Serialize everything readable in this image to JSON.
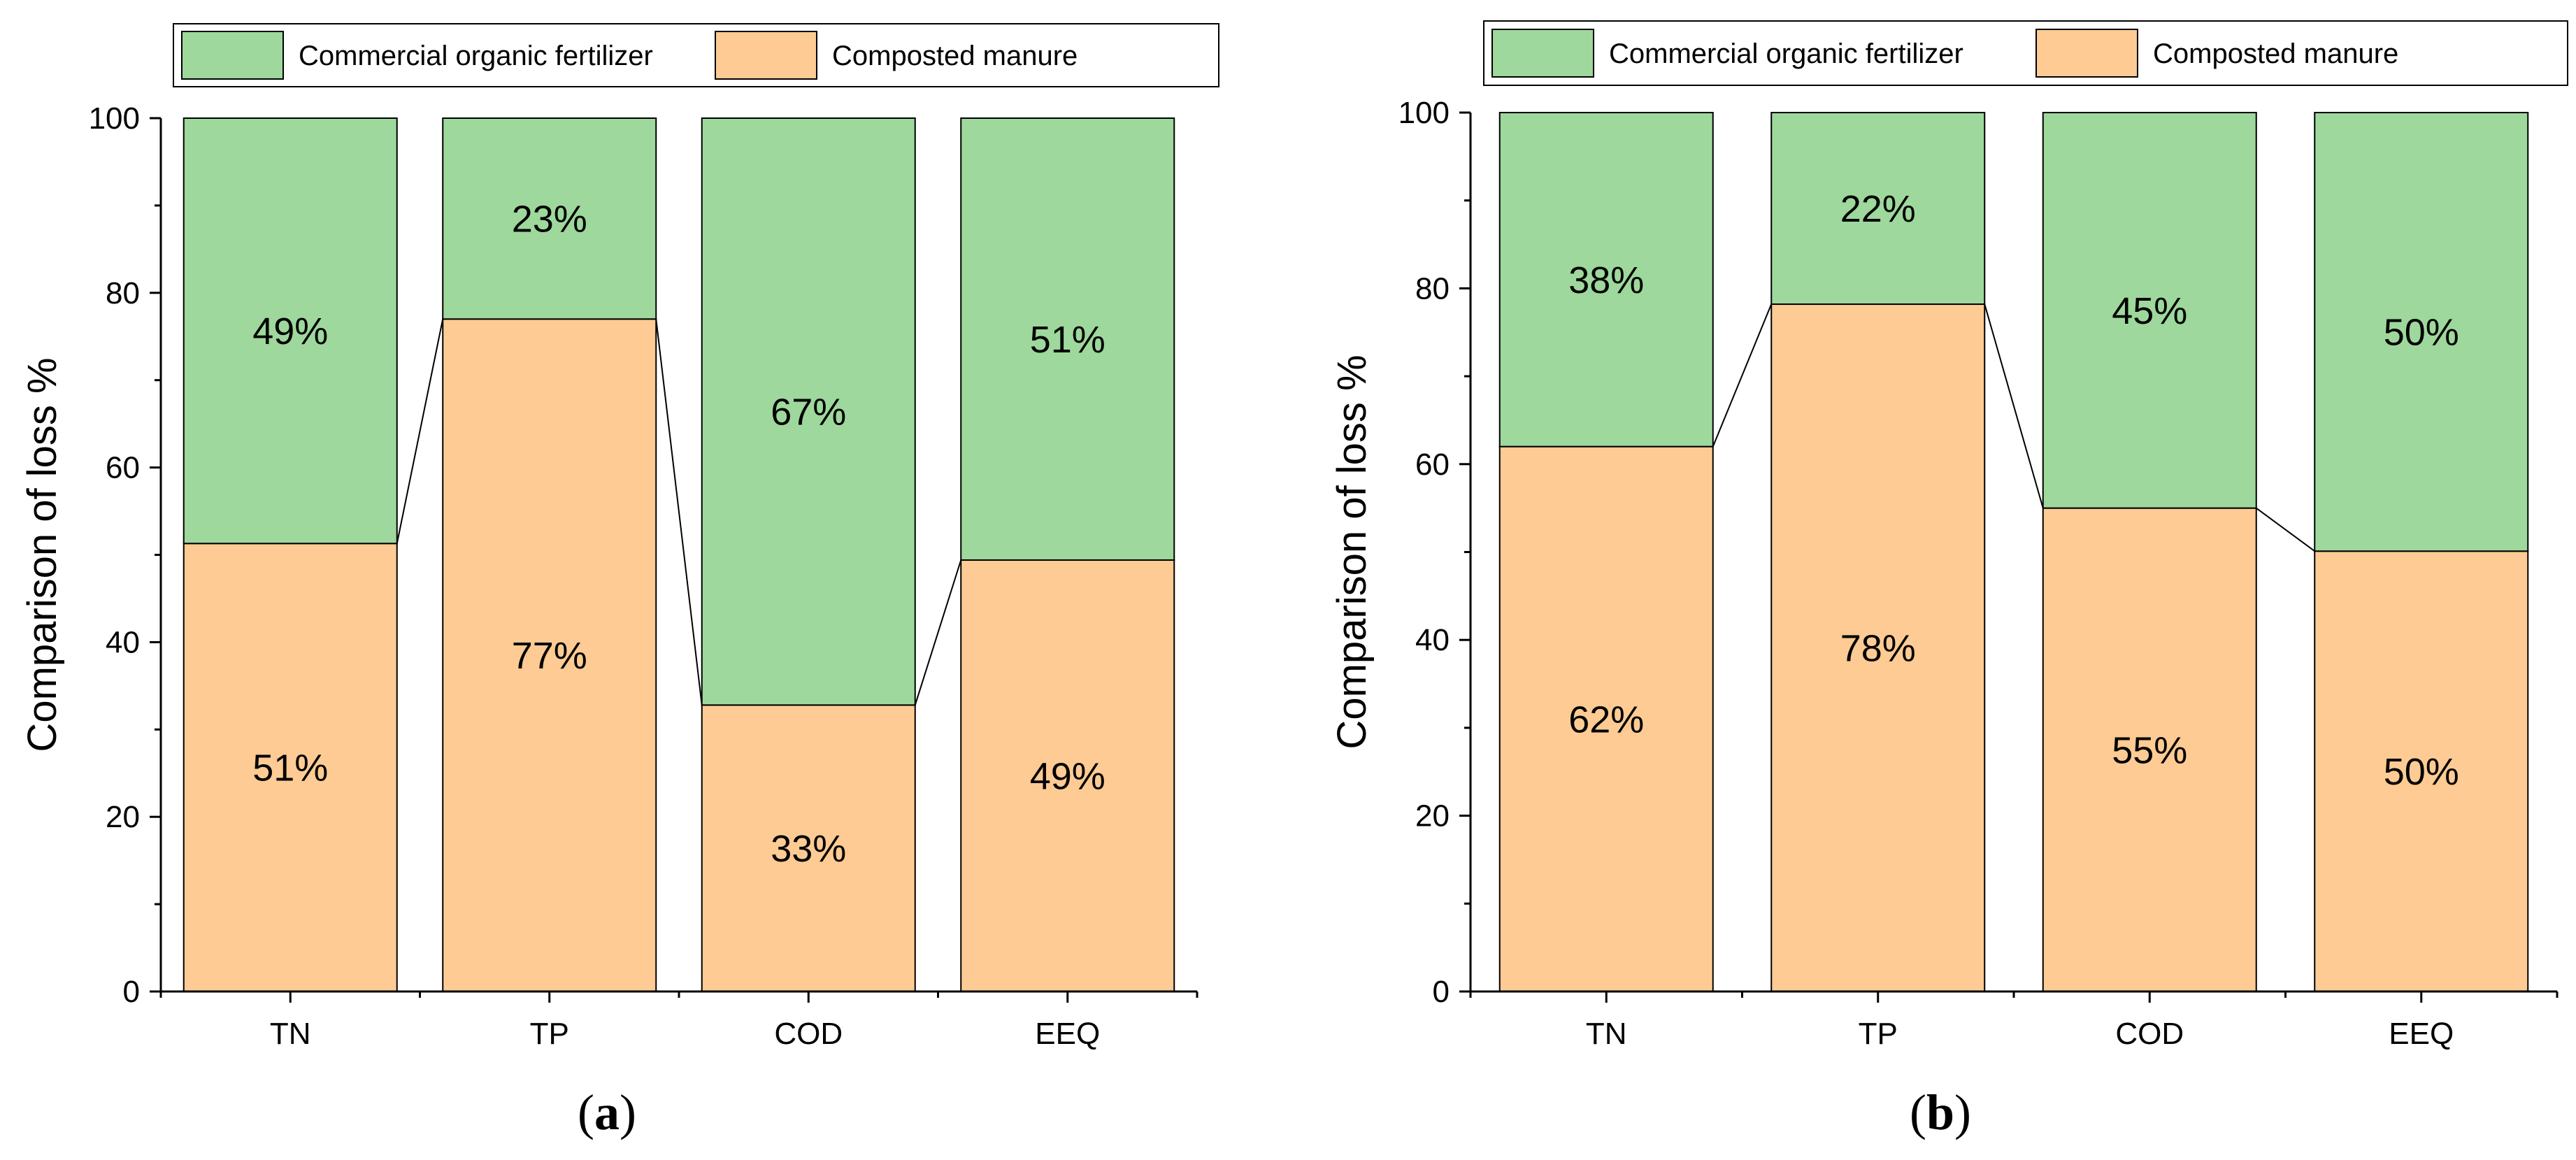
{
  "colors": {
    "commercial": "#9ed89c",
    "composted": "#fdcb93",
    "outline": "#000000"
  },
  "chart_data": [
    {
      "type": "bar",
      "stacked": true,
      "normalized_percent": true,
      "panel": "a",
      "caption": {
        "open": "(",
        "letter": "a",
        "close": ")"
      },
      "categories": [
        "TN",
        "TP",
        "COD",
        "EEQ"
      ],
      "series": [
        {
          "name": "Composted manure",
          "values": [
            51.3,
            77.0,
            32.8,
            49.4
          ],
          "labels": [
            "51%",
            "77%",
            "33%",
            "49%"
          ]
        },
        {
          "name": "Commercial organic fertilizer",
          "values": [
            48.7,
            23.0,
            67.2,
            50.6
          ],
          "labels": [
            "49%",
            "23%",
            "67%",
            "51%"
          ]
        }
      ],
      "ylabel": "Comparison of loss %",
      "ylim": [
        0,
        100
      ],
      "yticks": [
        "0",
        "20",
        "40",
        "60",
        "80",
        "100"
      ],
      "legend": {
        "placement": "top",
        "entries": [
          "Commercial organic fertilizer",
          "Composted manure"
        ]
      },
      "connector_lines": true,
      "grid": false
    },
    {
      "type": "bar",
      "stacked": true,
      "normalized_percent": true,
      "panel": "b",
      "caption": {
        "open": "(",
        "letter": "b",
        "close": ")"
      },
      "categories": [
        "TN",
        "TP",
        "COD",
        "EEQ"
      ],
      "series": [
        {
          "name": "Composted manure",
          "values": [
            62.0,
            78.2,
            55.0,
            50.1
          ],
          "labels": [
            "62%",
            "78%",
            "55%",
            "50%"
          ]
        },
        {
          "name": "Commercial organic fertilizer",
          "values": [
            38.0,
            21.8,
            45.0,
            49.9
          ],
          "labels": [
            "38%",
            "22%",
            "45%",
            "50%"
          ]
        }
      ],
      "ylabel": "Comparison of loss %",
      "ylim": [
        0,
        100
      ],
      "yticks": [
        "0",
        "20",
        "40",
        "60",
        "80",
        "100"
      ],
      "legend": {
        "placement": "top",
        "entries": [
          "Commercial organic fertilizer",
          "Composted manure"
        ]
      },
      "connector_lines": true,
      "grid": false
    }
  ]
}
